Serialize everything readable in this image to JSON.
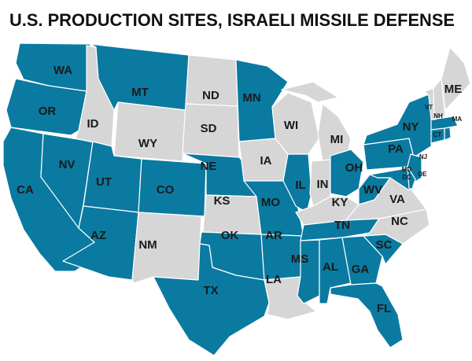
{
  "title": "U.S. PRODUCTION SITES, ISRAELI MISSILE DEFENSE",
  "colors": {
    "production_site": "#0a7aa1",
    "other": "#d6d6d6"
  },
  "states": [
    {
      "label": "WA",
      "production_site": true
    },
    {
      "label": "OR",
      "production_site": true
    },
    {
      "label": "CA",
      "production_site": true
    },
    {
      "label": "NV",
      "production_site": true
    },
    {
      "label": "ID",
      "production_site": false
    },
    {
      "label": "MT",
      "production_site": true
    },
    {
      "label": "WY",
      "production_site": false
    },
    {
      "label": "UT",
      "production_site": true
    },
    {
      "label": "CO",
      "production_site": true
    },
    {
      "label": "AZ",
      "production_site": true
    },
    {
      "label": "NM",
      "production_site": false
    },
    {
      "label": "ND",
      "production_site": false
    },
    {
      "label": "SD",
      "production_site": false
    },
    {
      "label": "NE",
      "production_site": true
    },
    {
      "label": "KS",
      "production_site": false
    },
    {
      "label": "OK",
      "production_site": true
    },
    {
      "label": "TX",
      "production_site": true
    },
    {
      "label": "MN",
      "production_site": true
    },
    {
      "label": "IA",
      "production_site": false
    },
    {
      "label": "MO",
      "production_site": true
    },
    {
      "label": "AR",
      "production_site": true
    },
    {
      "label": "LA",
      "production_site": false
    },
    {
      "label": "WI",
      "production_site": false
    },
    {
      "label": "IL",
      "production_site": true
    },
    {
      "label": "MI",
      "production_site": false
    },
    {
      "label": "IN",
      "production_site": false
    },
    {
      "label": "OH",
      "production_site": true
    },
    {
      "label": "KY",
      "production_site": false
    },
    {
      "label": "TN",
      "production_site": true
    },
    {
      "label": "MS",
      "production_site": true
    },
    {
      "label": "AL",
      "production_site": true
    },
    {
      "label": "GA",
      "production_site": true
    },
    {
      "label": "FL",
      "production_site": true
    },
    {
      "label": "SC",
      "production_site": true
    },
    {
      "label": "NC",
      "production_site": false
    },
    {
      "label": "VA",
      "production_site": false
    },
    {
      "label": "WV",
      "production_site": true
    },
    {
      "label": "PA",
      "production_site": true
    },
    {
      "label": "NY",
      "production_site": true
    },
    {
      "label": "NJ",
      "production_site": true
    },
    {
      "label": "MD",
      "production_site": true
    },
    {
      "label": "DC"
    },
    {
      "label": "DE",
      "production_site": true
    },
    {
      "label": "CT",
      "production_site": true
    },
    {
      "label": "MA",
      "production_site": true
    },
    {
      "label": "VT",
      "production_site": false
    },
    {
      "label": "NH",
      "production_site": false
    },
    {
      "label": "ME",
      "production_site": false
    }
  ]
}
